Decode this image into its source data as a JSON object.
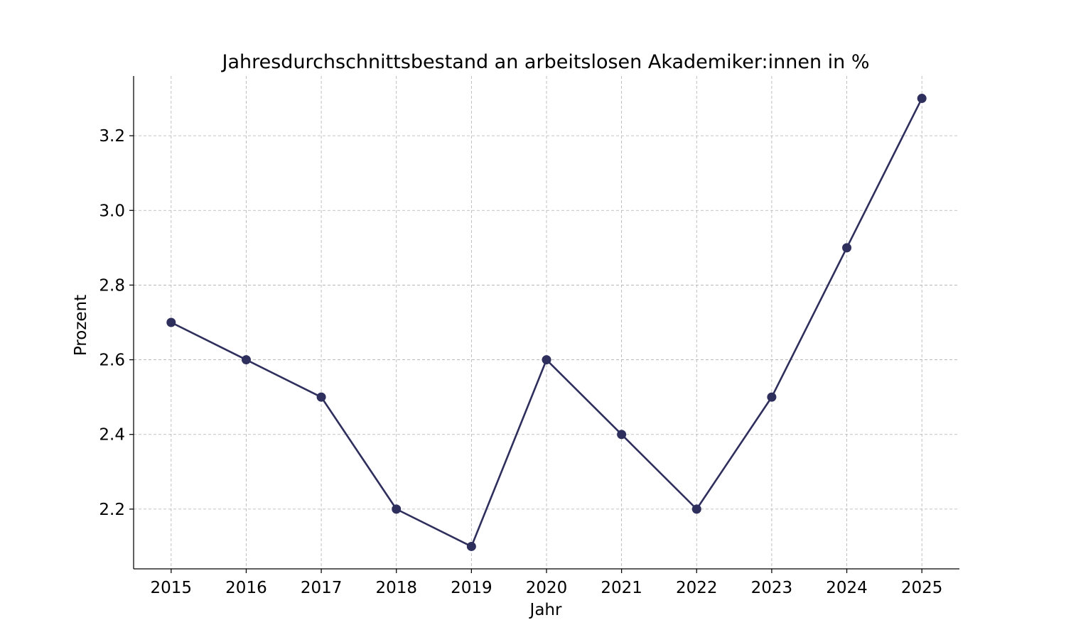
{
  "chart_data": {
    "type": "line",
    "title": "Jahresdurchschnittsbestand an arbeitslosen Akademiker:innen in %",
    "xlabel": "Jahr",
    "ylabel": "Prozent",
    "x": [
      2015,
      2016,
      2017,
      2018,
      2019,
      2020,
      2021,
      2022,
      2023,
      2024,
      2025
    ],
    "x_tick_labels": [
      "2015",
      "2016",
      "2017",
      "2018",
      "2019",
      "2020",
      "2021",
      "2022",
      "2023",
      "2024",
      "2025"
    ],
    "series": [
      {
        "values": [
          2.7,
          2.6,
          2.5,
          2.2,
          2.1,
          2.6,
          2.4,
          2.2,
          2.5,
          2.9,
          3.3
        ],
        "color": "#2f2f5e",
        "marker": "circle"
      }
    ],
    "xlim": [
      2014.5,
      2025.5
    ],
    "ylim": [
      2.04,
      3.36
    ],
    "y_ticks": [
      2.2,
      2.4,
      2.6,
      2.8,
      3.0,
      3.2
    ],
    "y_tick_labels": [
      "2.2",
      "2.4",
      "2.6",
      "2.8",
      "3.0",
      "3.2"
    ],
    "grid": true,
    "grid_style": "dashed",
    "spines": "left-bottom"
  }
}
